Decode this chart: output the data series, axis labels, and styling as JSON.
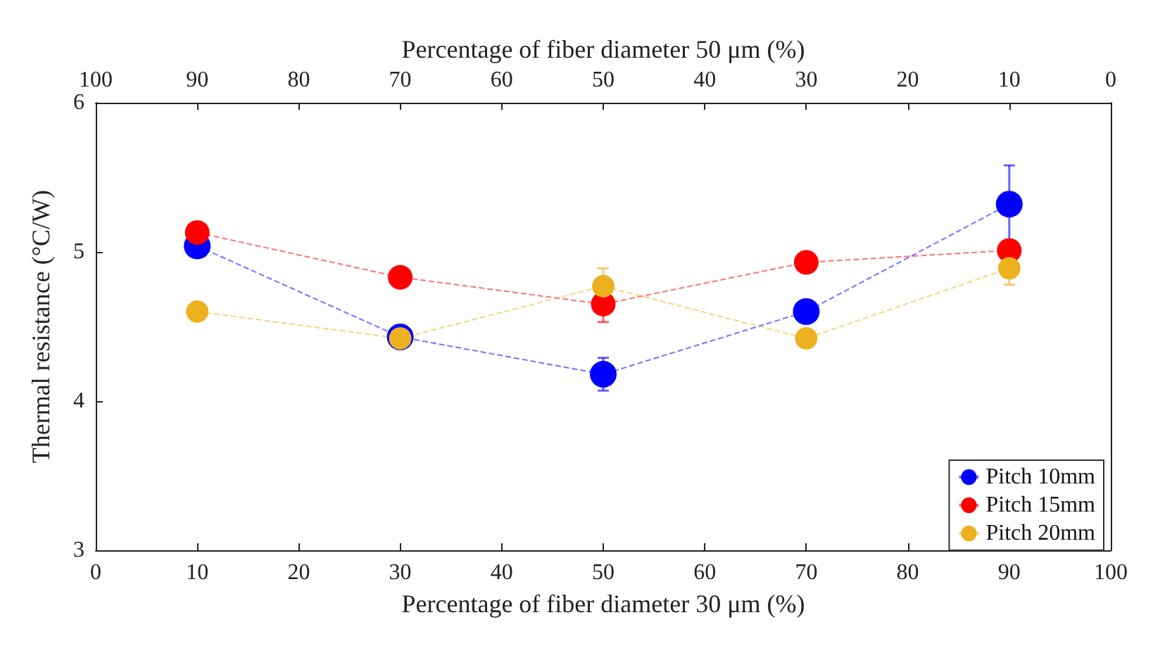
{
  "chart_data": {
    "type": "line",
    "xlabel": "Percentage of fiber diameter 30 μm (%)",
    "x2label": "Percentage of fiber diameter 50 μm (%)",
    "ylabel": "Thermal resistance (°C/W)",
    "x": [
      10,
      30,
      50,
      70,
      90
    ],
    "series": [
      {
        "name": "Pitch 10mm",
        "color": "#0000ff",
        "values": [
          5.04,
          4.43,
          4.18,
          4.6,
          5.32
        ],
        "errors": [
          null,
          null,
          0.11,
          null,
          0.26
        ]
      },
      {
        "name": "Pitch 15mm",
        "color": "#ff0000",
        "values": [
          5.13,
          4.83,
          4.65,
          4.93,
          5.01
        ],
        "errors": [
          null,
          null,
          0.12,
          0.07,
          null
        ]
      },
      {
        "name": "Pitch 20mm",
        "color": "#edb120",
        "values": [
          4.6,
          4.42,
          4.77,
          4.42,
          4.89
        ],
        "errors": [
          null,
          null,
          0.12,
          null,
          0.11
        ]
      }
    ],
    "xlim": [
      0,
      100
    ],
    "xticks": [
      0,
      10,
      20,
      30,
      40,
      50,
      60,
      70,
      80,
      90,
      100
    ],
    "x2lim": [
      100,
      0
    ],
    "x2ticks": [
      100,
      90,
      80,
      70,
      60,
      50,
      40,
      30,
      20,
      10,
      0
    ],
    "ylim": [
      3,
      6
    ],
    "yticks": [
      3,
      4,
      5,
      6
    ],
    "grid": false,
    "legend": "bottom right",
    "marker": "circle",
    "line_style": "dashed"
  }
}
